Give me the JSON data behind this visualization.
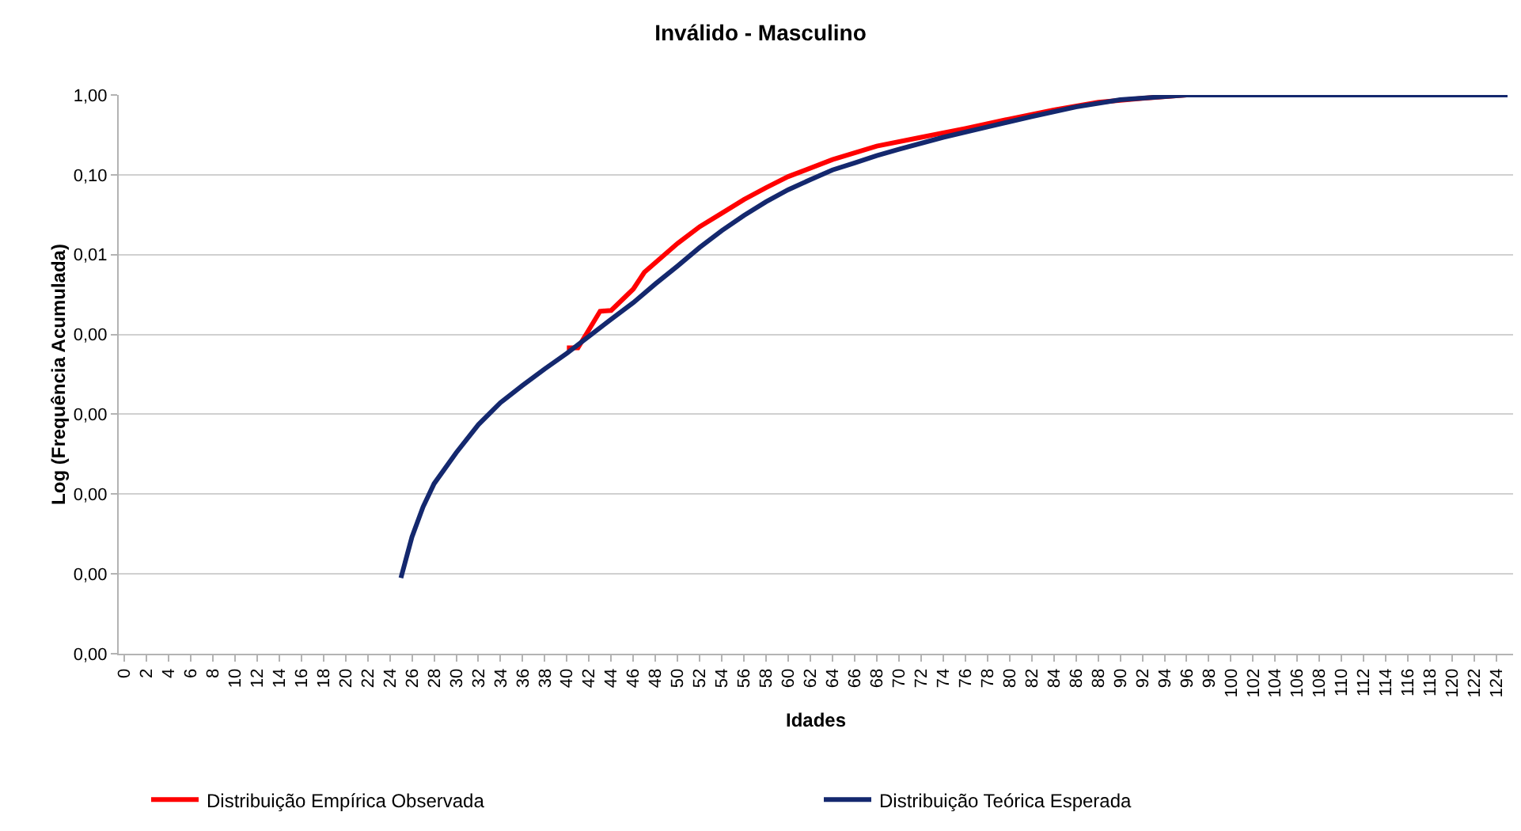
{
  "chart_data": {
    "type": "line",
    "title": "Inválido - Masculino",
    "xlabel": "Idades",
    "ylabel": "Log (Frequência Acumulada)",
    "log": "y",
    "grid": "y",
    "legend": "bottom",
    "marker": "none",
    "line_style": "solid",
    "xlim": [
      -0.5,
      125.5
    ],
    "xticks": [
      0,
      2,
      4,
      6,
      8,
      10,
      12,
      14,
      16,
      18,
      20,
      22,
      24,
      26,
      28,
      30,
      32,
      34,
      36,
      38,
      40,
      42,
      44,
      46,
      48,
      50,
      52,
      54,
      56,
      58,
      60,
      62,
      64,
      66,
      68,
      70,
      72,
      74,
      76,
      78,
      80,
      82,
      84,
      86,
      88,
      90,
      92,
      94,
      96,
      98,
      100,
      102,
      104,
      106,
      108,
      110,
      112,
      114,
      116,
      118,
      120,
      122,
      124
    ],
    "ylim": [
      1e-07,
      1
    ],
    "yticks": [
      {
        "value": 1e-07,
        "label": "0,00"
      },
      {
        "value": 1e-06,
        "label": "0,00"
      },
      {
        "value": 1e-05,
        "label": "0,00"
      },
      {
        "value": 0.0001,
        "label": "0,00"
      },
      {
        "value": 0.001,
        "label": "0,00"
      },
      {
        "value": 0.01,
        "label": "0,01"
      },
      {
        "value": 0.1,
        "label": "0,10"
      },
      {
        "value": 1,
        "label": "1,00"
      }
    ],
    "series": [
      {
        "name": "Distribuição Empírica Observada",
        "color": "#ff0000",
        "x": [
          40,
          41,
          43,
          44,
          46,
          47,
          50,
          52,
          54,
          56,
          58,
          60,
          64,
          68,
          72,
          76,
          80,
          84,
          88,
          92,
          96
        ],
        "values": [
          0.00068,
          0.00068,
          0.00195,
          0.002,
          0.0037,
          0.006,
          0.0138,
          0.0224,
          0.033,
          0.049,
          0.069,
          0.095,
          0.155,
          0.229,
          0.295,
          0.38,
          0.5,
          0.65,
          0.81,
          0.91,
          1
        ]
      },
      {
        "name": "Distribuição Teórica Esperada",
        "color": "#14286e",
        "x": [
          25,
          26,
          27,
          28,
          30,
          32,
          34,
          36,
          38,
          40,
          42,
          44,
          46,
          48,
          50,
          52,
          54,
          56,
          58,
          60,
          62,
          64,
          66,
          68,
          70,
          74,
          78,
          82,
          86,
          90,
          94,
          96,
          100,
          125
        ],
        "values": [
          8.9e-07,
          2.9e-06,
          6.9e-06,
          1.35e-05,
          3.3e-05,
          7.4e-05,
          0.00014,
          0.00023,
          0.00037,
          0.00058,
          0.00095,
          0.00155,
          0.0025,
          0.0043,
          0.0072,
          0.0123,
          0.02,
          0.031,
          0.046,
          0.065,
          0.087,
          0.115,
          0.141,
          0.174,
          0.209,
          0.295,
          0.398,
          0.537,
          0.708,
          0.871,
          0.955,
          1,
          1,
          1
        ]
      }
    ]
  }
}
